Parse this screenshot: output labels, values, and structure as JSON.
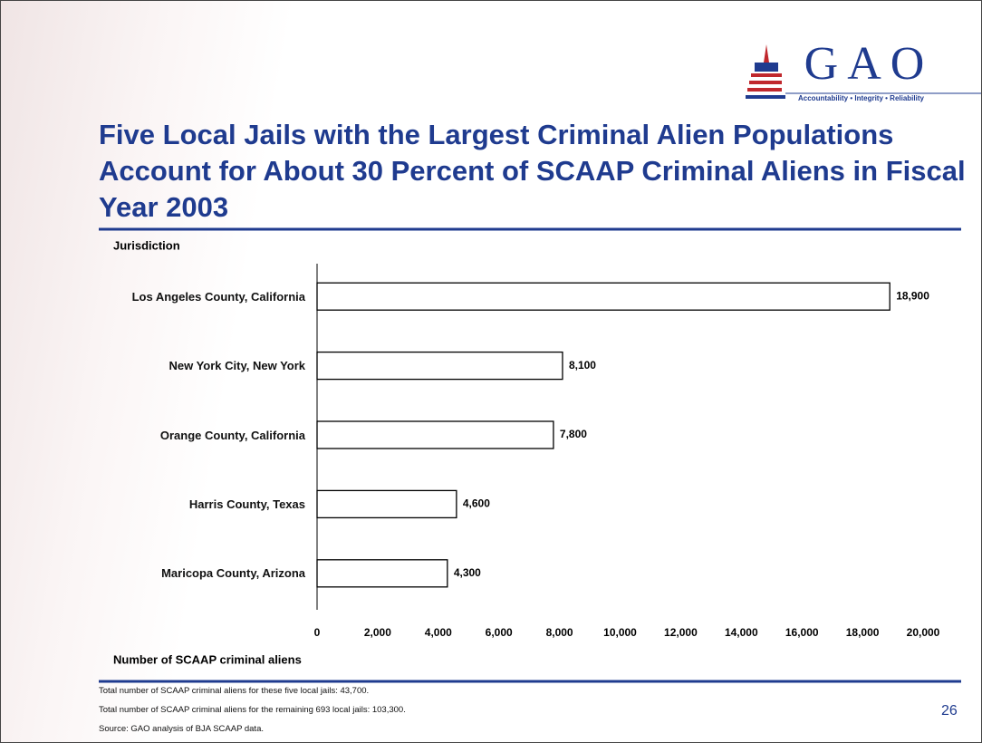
{
  "logo": {
    "name": "GAO",
    "tagline": "Accountability • Integrity • Reliability"
  },
  "chart_data": {
    "type": "hbar",
    "title": "Five Local Jails with the Largest Criminal Alien Populations Account for About 30 Percent of SCAAP Criminal Aliens in Fiscal Year 2003",
    "y_label": "Jurisdiction",
    "x_label": "Number of SCAAP criminal aliens",
    "categories": [
      "Los Angeles County, California",
      "New York City, New York",
      "Orange County, California",
      "Harris County, Texas",
      "Maricopa County, Arizona"
    ],
    "values": [
      18900,
      8100,
      7800,
      4600,
      4300
    ],
    "value_labels": [
      "18,900",
      "8,100",
      "7,800",
      "4,600",
      "4,300"
    ],
    "color": "#ffffff",
    "xlim": [
      0,
      20000
    ],
    "xticks": [
      0,
      {
        "value": 2000,
        "label": "2,000"
      },
      {
        "value": 4000,
        "label": "4,000"
      },
      {
        "value": 6000,
        "label": "6,000"
      },
      {
        "value": 8000,
        "label": "8,000"
      },
      {
        "value": 10000,
        "label": "10,000"
      },
      {
        "value": 12000,
        "label": "12,000"
      },
      {
        "value": 14000,
        "label": "14,000"
      },
      {
        "value": 16000,
        "label": "16,000"
      },
      {
        "value": 18000,
        "label": "18,000"
      },
      {
        "value": 20000,
        "label": "20,000"
      }
    ]
  },
  "notes": [
    "Total number of SCAAP criminal aliens for these five local jails: 43,700.",
    "Total number of SCAAP criminal aliens for the remaining 693 local jails: 103,300.",
    "Source: GAO analysis of BJA SCAAP data."
  ],
  "page_number": "26"
}
